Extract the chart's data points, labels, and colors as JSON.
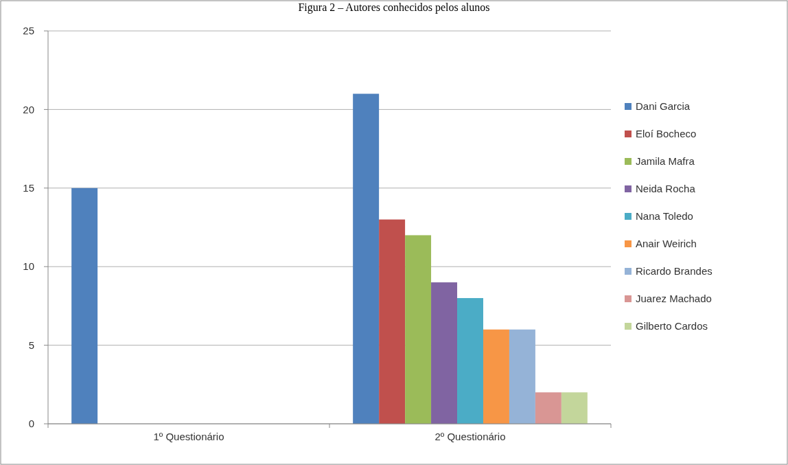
{
  "chart_data": {
    "type": "bar",
    "title": "Figura 2 – Autores conhecidos pelos alunos",
    "categories": [
      "1º Questionário",
      "2º Questionário"
    ],
    "series": [
      {
        "name": "Dani Garcia",
        "color": "#4f81bd",
        "values": [
          15,
          21
        ]
      },
      {
        "name": "Eloí Bocheco",
        "color": "#c0504d",
        "values": [
          null,
          13
        ]
      },
      {
        "name": "Jamila Mafra",
        "color": "#9bbb59",
        "values": [
          null,
          12
        ]
      },
      {
        "name": "Neida Rocha",
        "color": "#8064a2",
        "values": [
          null,
          9
        ]
      },
      {
        "name": "Nana Toledo",
        "color": "#4bacc6",
        "values": [
          null,
          8
        ]
      },
      {
        "name": "Anair Weirich",
        "color": "#f79646",
        "values": [
          null,
          6
        ]
      },
      {
        "name": "Ricardo Brandes",
        "color": "#95b3d7",
        "values": [
          null,
          6
        ]
      },
      {
        "name": "Juarez Machado",
        "color": "#d99694",
        "values": [
          null,
          2
        ]
      },
      {
        "name": "Gilberto Cardos",
        "color": "#c3d69b",
        "values": [
          null,
          2
        ]
      }
    ],
    "ylim": [
      0,
      25
    ],
    "yticks": [
      0,
      5,
      10,
      15,
      20,
      25
    ],
    "grid": "y",
    "legend": "right"
  }
}
